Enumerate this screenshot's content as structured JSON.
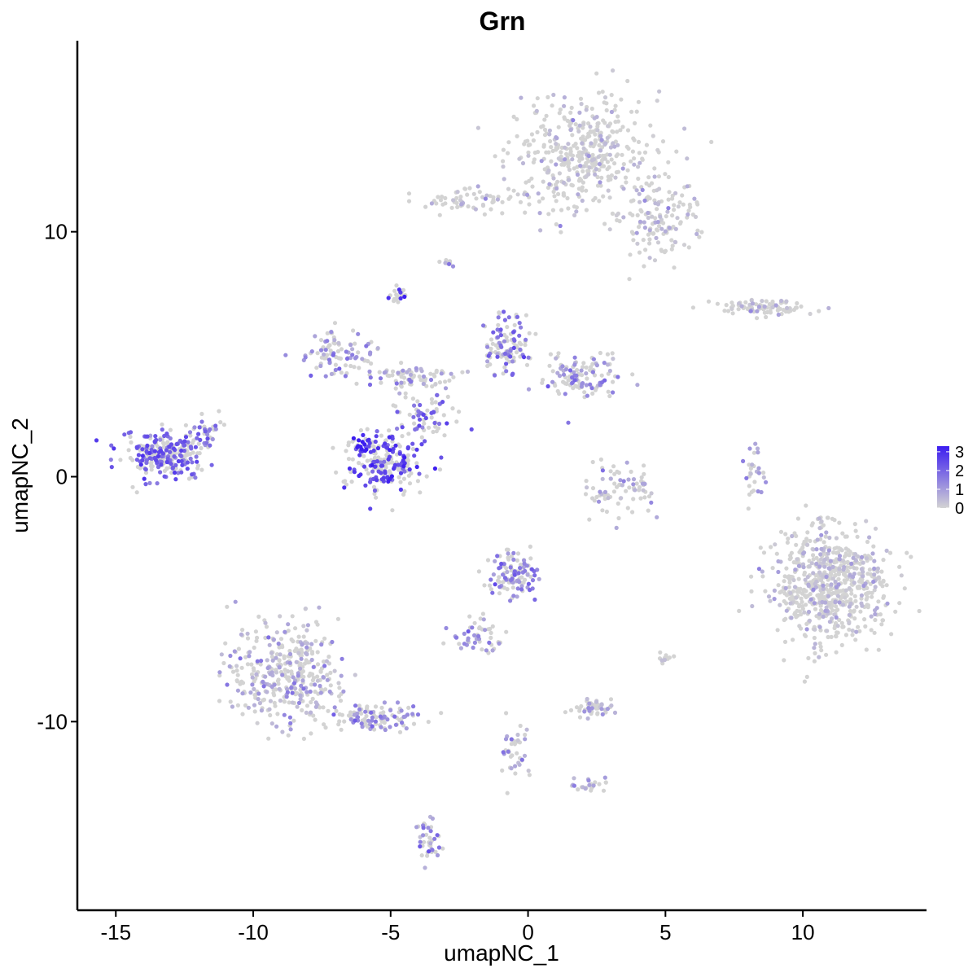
{
  "chart_data": {
    "type": "scatter",
    "title": "Grn",
    "xlabel": "umapNC_1",
    "ylabel": "umapNC_2",
    "xlim": [
      -16.4,
      14.5
    ],
    "ylim": [
      -17.7,
      17.8
    ],
    "x_ticks": [
      -15,
      -10,
      -5,
      0,
      5,
      10
    ],
    "x_tick_labels": [
      "-15",
      "-10",
      "-5",
      "0",
      "5",
      "10"
    ],
    "y_ticks": [
      -10,
      0,
      10
    ],
    "y_tick_labels": [
      "-10",
      "0",
      "10"
    ],
    "grid": false,
    "color_scale": {
      "low_color": "#d3d3d3",
      "high_color": "#3c1df0",
      "min": 0,
      "max": 3.3,
      "legend_ticks": [
        3,
        2,
        1,
        0
      ],
      "legend_tick_labels": [
        "3",
        "2",
        "1",
        "0"
      ],
      "legend_placement": "right"
    },
    "clusters": [
      {
        "id": "top-right-large",
        "center": [
          2.0,
          13.2
        ],
        "spread": [
          1.6,
          1.6
        ],
        "n": 420,
        "expr_mean": 0.12
      },
      {
        "id": "top-right-arm",
        "center": [
          4.8,
          10.6
        ],
        "spread": [
          0.9,
          1.1
        ],
        "n": 140,
        "expr_mean": 0.2
      },
      {
        "id": "top-left-thin",
        "center": [
          -1.8,
          11.3
        ],
        "spread": [
          1.5,
          0.35
        ],
        "n": 70,
        "expr_mean": 0.18
      },
      {
        "id": "top-small",
        "center": [
          -2.9,
          8.8
        ],
        "spread": [
          0.2,
          0.15
        ],
        "n": 8,
        "expr_mean": 0.4
      },
      {
        "id": "purple-tiny",
        "center": [
          -4.7,
          7.4
        ],
        "spread": [
          0.18,
          0.18
        ],
        "n": 22,
        "expr_mean": 2.1
      },
      {
        "id": "right-elongated",
        "center": [
          8.5,
          6.9
        ],
        "spread": [
          1.2,
          0.2
        ],
        "n": 90,
        "expr_mean": 0.15
      },
      {
        "id": "center-upper-left",
        "center": [
          -6.8,
          5.0
        ],
        "spread": [
          0.9,
          0.6
        ],
        "n": 90,
        "expr_mean": 0.9
      },
      {
        "id": "center-bridge",
        "center": [
          -4.3,
          4.0
        ],
        "spread": [
          1.2,
          0.4
        ],
        "n": 80,
        "expr_mean": 0.8
      },
      {
        "id": "center-upper-right",
        "center": [
          -0.8,
          5.4
        ],
        "spread": [
          0.6,
          0.8
        ],
        "n": 110,
        "expr_mean": 1.3
      },
      {
        "id": "center-right-lobe",
        "center": [
          2.0,
          4.2
        ],
        "spread": [
          0.9,
          0.6
        ],
        "n": 120,
        "expr_mean": 1.0
      },
      {
        "id": "center-big-purple",
        "center": [
          -5.2,
          0.6
        ],
        "spread": [
          0.9,
          0.8
        ],
        "n": 220,
        "expr_mean": 1.9
      },
      {
        "id": "center-neck",
        "center": [
          -3.8,
          2.5
        ],
        "spread": [
          0.7,
          0.7
        ],
        "n": 70,
        "expr_mean": 1.6
      },
      {
        "id": "center-blue-tip",
        "center": [
          -6.2,
          1.3
        ],
        "spread": [
          0.25,
          0.2
        ],
        "n": 25,
        "expr_mean": 3.0
      },
      {
        "id": "left-purple",
        "center": [
          -13.3,
          0.9
        ],
        "spread": [
          0.9,
          0.6
        ],
        "n": 280,
        "expr_mean": 1.6
      },
      {
        "id": "left-purple-tail",
        "center": [
          -11.8,
          1.8
        ],
        "spread": [
          0.5,
          0.5
        ],
        "n": 40,
        "expr_mean": 1.3
      },
      {
        "id": "center-right-small",
        "center": [
          3.3,
          -0.5
        ],
        "spread": [
          0.9,
          0.7
        ],
        "n": 80,
        "expr_mean": 0.6
      },
      {
        "id": "right-thin-strip",
        "center": [
          8.2,
          0.0
        ],
        "spread": [
          0.25,
          0.8
        ],
        "n": 30,
        "expr_mean": 0.7
      },
      {
        "id": "right-large-gray",
        "center": [
          10.9,
          -4.4
        ],
        "spread": [
          1.3,
          1.5
        ],
        "n": 700,
        "expr_mean": 0.15
      },
      {
        "id": "center-lower-purple",
        "center": [
          -0.5,
          -4.0
        ],
        "spread": [
          0.6,
          0.6
        ],
        "n": 120,
        "expr_mean": 1.2
      },
      {
        "id": "center-lower-tail",
        "center": [
          -1.8,
          -6.5
        ],
        "spread": [
          0.7,
          0.5
        ],
        "n": 50,
        "expr_mean": 0.9
      },
      {
        "id": "lower-left-large",
        "center": [
          -8.8,
          -8.0
        ],
        "spread": [
          1.3,
          1.4
        ],
        "n": 380,
        "expr_mean": 0.6
      },
      {
        "id": "lower-left-arm",
        "center": [
          -5.5,
          -9.8
        ],
        "spread": [
          1.1,
          0.4
        ],
        "n": 110,
        "expr_mean": 1.1
      },
      {
        "id": "lower-center-small",
        "center": [
          2.3,
          -9.5
        ],
        "spread": [
          0.5,
          0.3
        ],
        "n": 45,
        "expr_mean": 0.4
      },
      {
        "id": "lower-center-strip",
        "center": [
          -0.4,
          -11.3
        ],
        "spread": [
          0.3,
          0.9
        ],
        "n": 40,
        "expr_mean": 0.8
      },
      {
        "id": "lower-right-small",
        "center": [
          2.1,
          -12.6
        ],
        "spread": [
          0.5,
          0.2
        ],
        "n": 25,
        "expr_mean": 0.6
      },
      {
        "id": "bottom-small",
        "center": [
          -3.6,
          -14.9
        ],
        "spread": [
          0.3,
          0.5
        ],
        "n": 40,
        "expr_mean": 1.1
      },
      {
        "id": "right-small-dots",
        "center": [
          5.0,
          -7.4
        ],
        "spread": [
          0.15,
          0.2
        ],
        "n": 12,
        "expr_mean": 0.6
      }
    ]
  }
}
